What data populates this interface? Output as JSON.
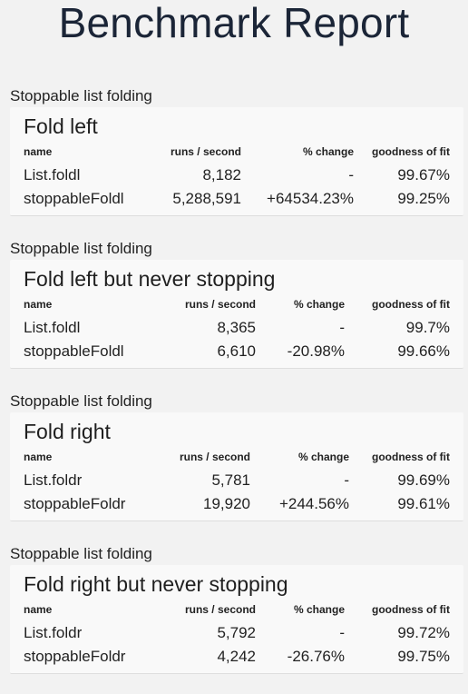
{
  "page": {
    "title": "Benchmark Report"
  },
  "columns": {
    "name": "name",
    "runs": "runs / second",
    "change": "% change",
    "fit": "goodness of fit"
  },
  "sections": [
    {
      "group": "Stoppable list folding",
      "title": "Fold left",
      "rows": [
        {
          "name": "List.foldl",
          "runs": "8,182",
          "change": "-",
          "fit": "99.67%"
        },
        {
          "name": "stoppableFoldl",
          "runs": "5,288,591",
          "change": "+64534.23%",
          "fit": "99.25%"
        }
      ]
    },
    {
      "group": "Stoppable list folding",
      "title": "Fold left but never stopping",
      "rows": [
        {
          "name": "List.foldl",
          "runs": "8,365",
          "change": "-",
          "fit": "99.7%"
        },
        {
          "name": "stoppableFoldl",
          "runs": "6,610",
          "change": "-20.98%",
          "fit": "99.66%"
        }
      ]
    },
    {
      "group": "Stoppable list folding",
      "title": "Fold right",
      "rows": [
        {
          "name": "List.foldr",
          "runs": "5,781",
          "change": "-",
          "fit": "99.69%"
        },
        {
          "name": "stoppableFoldr",
          "runs": "19,920",
          "change": "+244.56%",
          "fit": "99.61%"
        }
      ]
    },
    {
      "group": "Stoppable list folding",
      "title": "Fold right but never stopping",
      "rows": [
        {
          "name": "List.foldr",
          "runs": "5,792",
          "change": "-",
          "fit": "99.72%"
        },
        {
          "name": "stoppableFoldr",
          "runs": "4,242",
          "change": "-26.76%",
          "fit": "99.75%"
        }
      ]
    }
  ]
}
